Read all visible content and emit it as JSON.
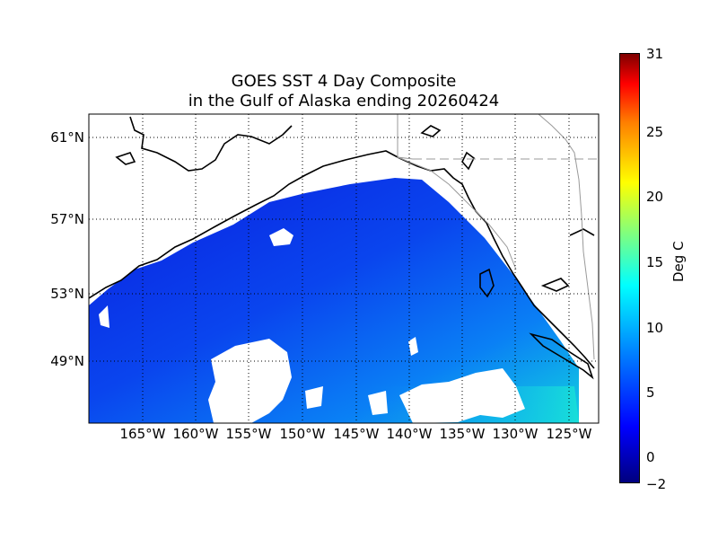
{
  "title": {
    "line1": "GOES SST 4 Day Composite",
    "line2": "in the Gulf of Alaska ending 20260424"
  },
  "map": {
    "lat_labels": [
      "61°N",
      "57°N",
      "53°N",
      "49°N"
    ],
    "lon_labels": [
      "165°W",
      "160°W",
      "155°W",
      "150°W",
      "145°W",
      "140°W",
      "135°W",
      "130°W",
      "125°W"
    ],
    "gridlines": "dotted",
    "colors": {
      "ocean_cold": "#0a2fe8",
      "ocean_mid": "#0a6ef5",
      "ocean_warm": "#14d6e0",
      "land": "#ffffff",
      "coast": "#000000",
      "no_data": "#ffffff"
    }
  },
  "colorbar": {
    "label": "Deg C",
    "ticks": [
      "31",
      "25",
      "20",
      "15",
      "10",
      "5",
      "0",
      "−2"
    ],
    "colormap": "jet",
    "range": [
      -2,
      31
    ]
  }
}
